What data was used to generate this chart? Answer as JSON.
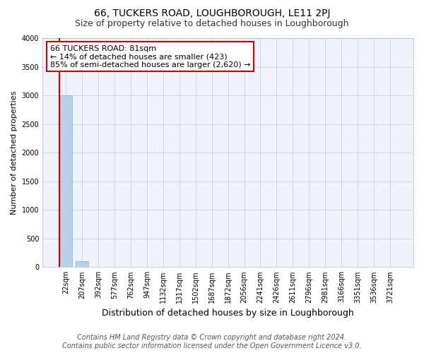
{
  "title1": "66, TUCKERS ROAD, LOUGHBOROUGH, LE11 2PJ",
  "title2": "Size of property relative to detached houses in Loughborough",
  "xlabel": "Distribution of detached houses by size in Loughborough",
  "ylabel": "Number of detached properties",
  "categories": [
    "22sqm",
    "207sqm",
    "392sqm",
    "577sqm",
    "762sqm",
    "947sqm",
    "1132sqm",
    "1317sqm",
    "1502sqm",
    "1687sqm",
    "1872sqm",
    "2056sqm",
    "2241sqm",
    "2426sqm",
    "2611sqm",
    "2796sqm",
    "2981sqm",
    "3166sqm",
    "3351sqm",
    "3536sqm",
    "3721sqm"
  ],
  "values": [
    3000,
    100,
    0,
    0,
    0,
    0,
    0,
    0,
    0,
    0,
    0,
    0,
    0,
    0,
    0,
    0,
    0,
    0,
    0,
    0,
    0
  ],
  "bar_color": "#b8cfe8",
  "ylim": [
    0,
    4000
  ],
  "yticks": [
    0,
    500,
    1000,
    1500,
    2000,
    2500,
    3000,
    3500,
    4000
  ],
  "annotation_line1": "66 TUCKERS ROAD: 81sqm",
  "annotation_line2": "← 14% of detached houses are smaller (423)",
  "annotation_line3": "85% of semi-detached houses are larger (2,620) →",
  "annotation_box_facecolor": "#ffffff",
  "annotation_box_edgecolor": "#cc0000",
  "property_line_color": "#cc0000",
  "footer1": "Contains HM Land Registry data © Crown copyright and database right 2024.",
  "footer2": "Contains public sector information licensed under the Open Government Licence v3.0.",
  "bg_color": "#eef2fa",
  "grid_color": "#c5d0e4",
  "title1_fontsize": 10,
  "title2_fontsize": 9,
  "xlabel_fontsize": 9,
  "ylabel_fontsize": 8,
  "tick_fontsize": 7,
  "annotation_fontsize": 8,
  "footer_fontsize": 7
}
